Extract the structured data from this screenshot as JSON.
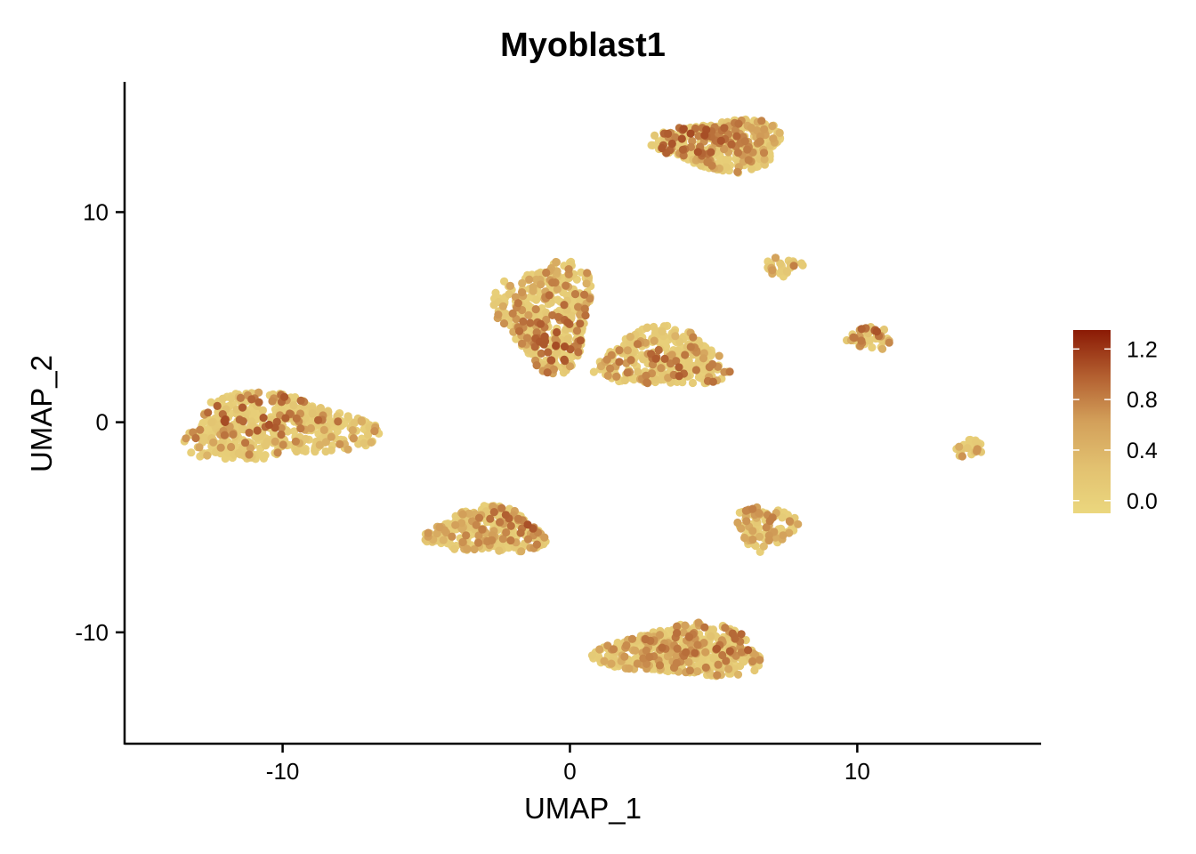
{
  "chart_data": {
    "type": "scatter",
    "title": "Myoblast1",
    "xlabel": "UMAP_1",
    "ylabel": "UMAP_2",
    "xlim": [
      -15.5,
      16.4
    ],
    "ylim": [
      -15.3,
      16.2
    ],
    "x_ticks": [
      {
        "value": -10,
        "label": "-10"
      },
      {
        "value": 0,
        "label": "0"
      },
      {
        "value": 10,
        "label": "10"
      }
    ],
    "y_ticks": [
      {
        "value": 10,
        "label": "10"
      },
      {
        "value": 0,
        "label": "0"
      },
      {
        "value": -10,
        "label": "-10"
      }
    ],
    "grid": false,
    "legend_position": "right",
    "color_scale": {
      "low_color": "#EBD77E",
      "mid_color": "#D3A05A",
      "high_color": "#8B1A05",
      "min": -0.1,
      "max": 1.35,
      "ticks": [
        {
          "value": 1.2,
          "label": "1.2"
        },
        {
          "value": 0.8,
          "label": "0.8"
        },
        {
          "value": 0.4,
          "label": "0.4"
        },
        {
          "value": 0.0,
          "label": "0.0"
        }
      ]
    },
    "clusters": [
      {
        "id": "cluster-left",
        "center": [
          -10.3,
          -0.3
        ],
        "extent": [
          3.8,
          1.8
        ],
        "n_points": 520,
        "highlight_fraction": 0.14,
        "hotspot": [
          -11.0,
          0.5
        ],
        "hotspot_level": 0.9
      },
      {
        "id": "cluster-upper-right",
        "center": [
          5.3,
          13.2
        ],
        "extent": [
          2.6,
          1.4
        ],
        "n_points": 360,
        "highlight_fraction": 0.35,
        "hotspot": [
          4.0,
          13.5
        ],
        "hotspot_level": 0.9
      },
      {
        "id": "cluster-center-a",
        "center": [
          -0.8,
          5.2
        ],
        "extent": [
          1.9,
          3.0
        ],
        "n_points": 430,
        "highlight_fraction": 0.28,
        "hotspot": [
          -0.5,
          4.0
        ],
        "hotspot_level": 0.8
      },
      {
        "id": "cluster-center-b",
        "center": [
          3.2,
          3.0
        ],
        "extent": [
          2.6,
          1.6
        ],
        "n_points": 330,
        "highlight_fraction": 0.22,
        "hotspot": [
          3.5,
          2.5
        ],
        "hotspot_level": 0.7
      },
      {
        "id": "cluster-small-a",
        "center": [
          7.4,
          7.4
        ],
        "extent": [
          0.75,
          0.55
        ],
        "n_points": 30,
        "highlight_fraction": 0.2,
        "hotspot": [
          7.6,
          7.6
        ],
        "hotspot_level": 0.6
      },
      {
        "id": "cluster-small-b",
        "center": [
          10.4,
          4.0
        ],
        "extent": [
          0.9,
          0.65
        ],
        "n_points": 45,
        "highlight_fraction": 0.45,
        "hotspot": [
          10.5,
          4.3
        ],
        "hotspot_level": 0.8
      },
      {
        "id": "cluster-small-c",
        "center": [
          13.9,
          -1.2
        ],
        "extent": [
          0.65,
          0.55
        ],
        "n_points": 30,
        "highlight_fraction": 0.35,
        "hotspot": [
          13.8,
          -0.9
        ],
        "hotspot_level": 0.6
      },
      {
        "id": "cluster-lower-left",
        "center": [
          -2.9,
          -5.2
        ],
        "extent": [
          2.3,
          1.25
        ],
        "n_points": 300,
        "highlight_fraction": 0.3,
        "hotspot": [
          -1.5,
          -4.6
        ],
        "hotspot_level": 0.8
      },
      {
        "id": "cluster-lower-mid",
        "center": [
          6.8,
          -5.0
        ],
        "extent": [
          1.2,
          1.2
        ],
        "n_points": 110,
        "highlight_fraction": 0.25,
        "hotspot": [
          6.6,
          -3.7
        ],
        "hotspot_level": 0.6
      },
      {
        "id": "cluster-bottom",
        "center": [
          4.0,
          -10.9
        ],
        "extent": [
          3.3,
          1.4
        ],
        "n_points": 520,
        "highlight_fraction": 0.22,
        "hotspot": [
          5.0,
          -10.5
        ],
        "hotspot_level": 0.7
      }
    ]
  }
}
